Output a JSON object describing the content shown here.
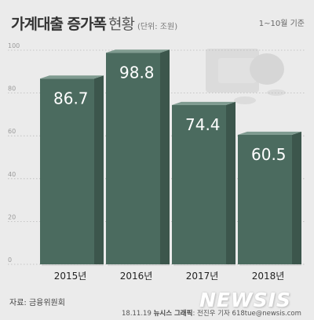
{
  "header": {
    "title": "가계대출 증가폭",
    "subtitle": "현황",
    "unit": "(단위: 조원)",
    "period": "1~10월 기준"
  },
  "chart_data": {
    "type": "bar",
    "categories": [
      "2015년",
      "2016년",
      "2017년",
      "2018년"
    ],
    "values": [
      86.7,
      98.8,
      74.4,
      60.5
    ],
    "ylim": [
      0,
      100
    ],
    "yticks": [
      0,
      20,
      40,
      60,
      80,
      100
    ],
    "grid": true,
    "bar_color": "#4b6b5f"
  },
  "footer": {
    "source": "자료: 금융위원회",
    "date": "18.11.19",
    "agency": "뉴시스 그래픽",
    "author": "전진우 기자 618tue@newsis.com",
    "logo": "NEWSIS"
  }
}
